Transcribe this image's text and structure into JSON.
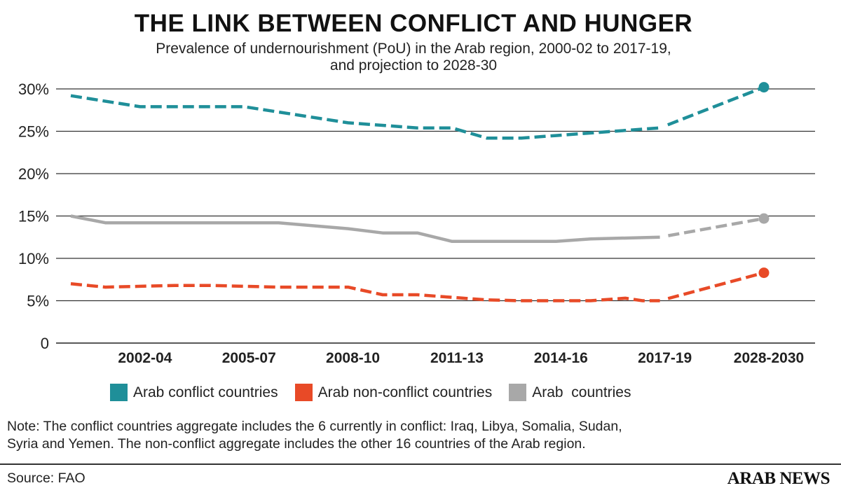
{
  "header": {
    "title": "THE LINK BETWEEN CONFLICT AND HUNGER",
    "subtitle_line1": "Prevalence of undernourishment (PoU) in the Arab region, 2000-02 to 2017-19,",
    "subtitle_line2": "and projection to 2028-30"
  },
  "chart_data": {
    "type": "line",
    "title": "THE LINK BETWEEN CONFLICT AND HUNGER",
    "ylim": [
      0,
      30
    ],
    "y_ticks": [
      {
        "value": 0,
        "label": "0"
      },
      {
        "value": 5,
        "label": "5%"
      },
      {
        "value": 10,
        "label": "10%"
      },
      {
        "value": 15,
        "label": "15%"
      },
      {
        "value": 20,
        "label": "20%"
      },
      {
        "value": 25,
        "label": "25%"
      },
      {
        "value": 30,
        "label": "30%"
      }
    ],
    "grid": "horizontal",
    "x_period_index": [
      0,
      1,
      2,
      3,
      4,
      5,
      6,
      7,
      8,
      9,
      10,
      11,
      12,
      13,
      14,
      15,
      16,
      17,
      18,
      19,
      20
    ],
    "x_ticks": [
      {
        "index": 2,
        "label": "2002-04"
      },
      {
        "index": 5,
        "label": "2005-07"
      },
      {
        "index": 8,
        "label": "2008-10"
      },
      {
        "index": 11,
        "label": "2011-13"
      },
      {
        "index": 14,
        "label": "2014-16"
      },
      {
        "index": 17,
        "label": "2017-19"
      },
      {
        "index": 20,
        "label": "2028-2030"
      }
    ],
    "series": [
      {
        "name": "Arab conflict countries",
        "color": "#1f8f99",
        "style": "dashed",
        "x": [
          0,
          2,
          5,
          8,
          10,
          11,
          12,
          13,
          14,
          16,
          17
        ],
        "values": [
          29.2,
          27.9,
          27.9,
          26.0,
          25.4,
          25.4,
          24.2,
          24.2,
          24.5,
          25.1,
          25.4
        ],
        "projection_x": [
          17,
          20
        ],
        "projection_values": [
          25.4,
          30.2
        ]
      },
      {
        "name": "Arab non-conflict countries",
        "color": "#e84a27",
        "style": "dashed",
        "x": [
          0,
          1,
          3,
          4,
          6,
          8,
          9,
          10,
          11,
          12,
          13,
          14,
          15,
          16,
          16.5,
          17
        ],
        "values": [
          7.0,
          6.6,
          6.8,
          6.8,
          6.6,
          6.6,
          5.7,
          5.7,
          5.4,
          5.1,
          5.0,
          5.0,
          5.0,
          5.3,
          5.0,
          5.0
        ],
        "projection_x": [
          17,
          20
        ],
        "projection_values": [
          5.0,
          8.3
        ]
      },
      {
        "name": "Arab  countries",
        "color": "#a8a8a8",
        "style": "solid",
        "x": [
          0,
          1,
          6,
          8,
          9,
          10,
          11,
          12,
          14,
          15,
          17
        ],
        "values": [
          15.0,
          14.2,
          14.2,
          13.5,
          13.0,
          13.0,
          12.0,
          12.0,
          12.0,
          12.3,
          12.5
        ],
        "projection_x": [
          17,
          20
        ],
        "projection_values": [
          12.5,
          14.7
        ]
      }
    ]
  },
  "legend": {
    "placement": "bottom",
    "items": [
      {
        "label": "Arab conflict countries",
        "color": "#1f8f99"
      },
      {
        "label": "Arab non-conflict countries",
        "color": "#e84a27"
      },
      {
        "label": "Arab  countries",
        "color": "#a8a8a8"
      }
    ]
  },
  "footer": {
    "note_line1": "Note: The conflict countries aggregate includes the 6 currently in conflict: Iraq, Libya, Somalia, Sudan,",
    "note_line2": "Syria and Yemen. The non-conflict aggregate includes the other 16 countries of the Arab region.",
    "source": "Source: FAO",
    "brand": "ARAB NEWS"
  }
}
